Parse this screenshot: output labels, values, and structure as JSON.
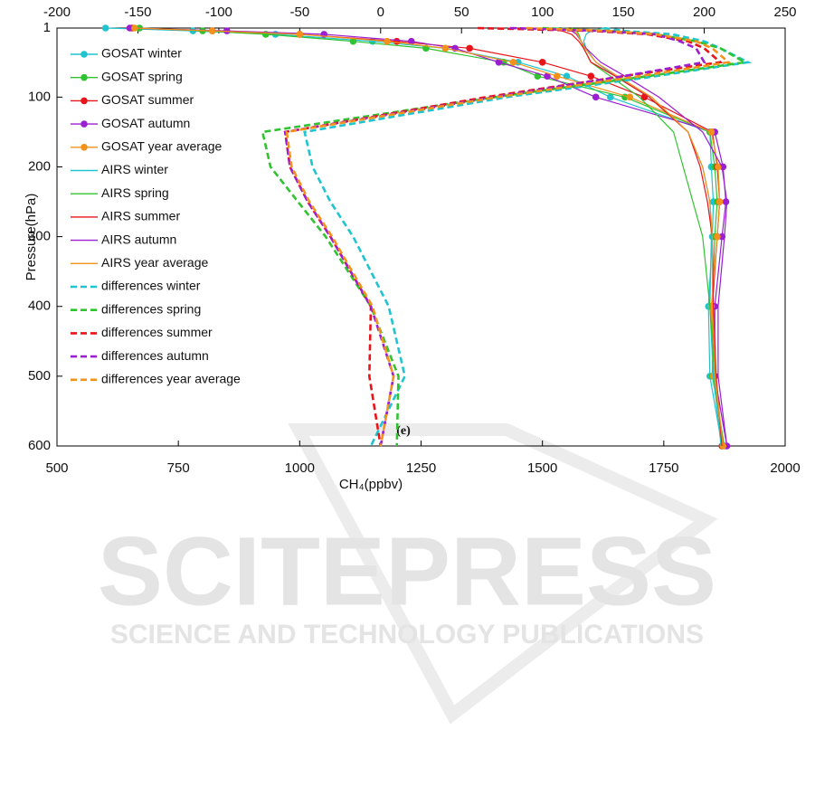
{
  "chart_data": {
    "type": "line",
    "xlabel": "CH₄(ppbv)",
    "ylabel": "Pressure(hPa)",
    "annotation": "(e)",
    "y": [
      1,
      5,
      10,
      20,
      30,
      50,
      70,
      100,
      150,
      200,
      250,
      300,
      400,
      500,
      600
    ],
    "ylim": [
      1,
      600
    ],
    "yticks": [
      1,
      100,
      200,
      300,
      400,
      500,
      600
    ],
    "y_reversed": true,
    "xlim": [
      500,
      2000
    ],
    "xticks": [
      500,
      750,
      1000,
      1250,
      1500,
      1750,
      2000
    ],
    "x2lim": [
      -200,
      250
    ],
    "x2ticks": [
      -200,
      -150,
      -100,
      -50,
      0,
      50,
      100,
      150,
      200,
      250
    ],
    "legend": "upper left",
    "series": [
      {
        "name": "GOSAT winter",
        "color": "#1fc4cf",
        "style": "marker",
        "values": [
          600,
          780,
          950,
          1150,
          1300,
          1450,
          1550,
          1640,
          1845,
          1848,
          1852,
          1850,
          1842,
          1845,
          1870
        ]
      },
      {
        "name": "GOSAT spring",
        "color": "#2fc42f",
        "style": "marker",
        "values": [
          670,
          800,
          930,
          1110,
          1260,
          1420,
          1490,
          1670,
          1845,
          1855,
          1860,
          1855,
          1850,
          1850,
          1875
        ]
      },
      {
        "name": "GOSAT summer",
        "color": "#e8141a",
        "style": "marker",
        "values": [
          655,
          820,
          1000,
          1200,
          1350,
          1500,
          1600,
          1710,
          1850,
          1860,
          1865,
          1860,
          1850,
          1855,
          1870
        ]
      },
      {
        "name": "GOSAT autumn",
        "color": "#9b1fd0",
        "style": "marker",
        "values": [
          650,
          850,
          1050,
          1230,
          1320,
          1410,
          1510,
          1610,
          1855,
          1872,
          1878,
          1870,
          1855,
          1855,
          1880
        ]
      },
      {
        "name": "GOSAT year average",
        "color": "#f3921a",
        "style": "marker",
        "values": [
          660,
          820,
          1000,
          1180,
          1300,
          1440,
          1530,
          1680,
          1848,
          1862,
          1865,
          1860,
          1848,
          1852,
          1872
        ]
      },
      {
        "name": "AIRS winter",
        "color": "#1fc4cf",
        "style": "line",
        "values": [
          1627,
          1600,
          1590,
          1585,
          1590,
          1610,
          1650,
          1720,
          1800,
          1830,
          1845,
          1848,
          1845,
          1852,
          1868
        ]
      },
      {
        "name": "AIRS spring",
        "color": "#2fc42f",
        "style": "line",
        "values": [
          1560,
          1570,
          1575,
          1580,
          1585,
          1600,
          1640,
          1700,
          1770,
          1790,
          1810,
          1830,
          1845,
          1855,
          1872
        ]
      },
      {
        "name": "AIRS summer",
        "color": "#e8141a",
        "style": "line",
        "values": [
          1500,
          1540,
          1560,
          1575,
          1585,
          1600,
          1650,
          1720,
          1800,
          1825,
          1840,
          1850,
          1852,
          1858,
          1870
        ]
      },
      {
        "name": "AIRS autumn",
        "color": "#9b1fd0",
        "style": "line",
        "values": [
          1540,
          1560,
          1570,
          1580,
          1590,
          1620,
          1670,
          1740,
          1830,
          1870,
          1880,
          1875,
          1862,
          1862,
          1880
        ]
      },
      {
        "name": "AIRS year average",
        "color": "#f3921a",
        "style": "line",
        "values": [
          1550,
          1565,
          1572,
          1580,
          1588,
          1610,
          1655,
          1725,
          1800,
          1830,
          1845,
          1850,
          1850,
          1856,
          1872
        ]
      },
      {
        "name": "differences winter",
        "color": "#1fc4cf",
        "style": "dashed",
        "axis": "x2",
        "values": [
          138,
          150,
          180,
          200,
          210,
          227,
          170,
          78,
          -47,
          -42,
          -31,
          -17,
          5,
          15,
          -6
        ]
      },
      {
        "name": "differences spring",
        "color": "#2fc42f",
        "style": "dashed",
        "axis": "x2",
        "values": [
          100,
          140,
          170,
          195,
          210,
          225,
          165,
          70,
          -73,
          -68,
          -51,
          -34,
          -6,
          11,
          10
        ]
      },
      {
        "name": "differences summer",
        "color": "#e8141a",
        "style": "dashed",
        "axis": "x2",
        "values": [
          60,
          130,
          165,
          190,
          200,
          210,
          150,
          65,
          -59,
          -56,
          -45,
          -31,
          -6,
          -7,
          0
        ]
      },
      {
        "name": "differences autumn",
        "color": "#9b1fd0",
        "style": "dashed",
        "axis": "x2",
        "values": [
          80,
          135,
          170,
          185,
          195,
          200,
          150,
          70,
          -59,
          -56,
          -45,
          -31,
          -6,
          8,
          0
        ]
      },
      {
        "name": "differences year average",
        "color": "#f3921a",
        "style": "dashed",
        "axis": "x2",
        "values": [
          90,
          140,
          170,
          195,
          205,
          215,
          160,
          72,
          -58,
          -55,
          -44,
          -30,
          -5,
          8,
          0
        ]
      }
    ]
  },
  "watermark": {
    "title": "SCITEPRESS",
    "subtitle": "SCIENCE AND TECHNOLOGY PUBLICATIONS"
  }
}
